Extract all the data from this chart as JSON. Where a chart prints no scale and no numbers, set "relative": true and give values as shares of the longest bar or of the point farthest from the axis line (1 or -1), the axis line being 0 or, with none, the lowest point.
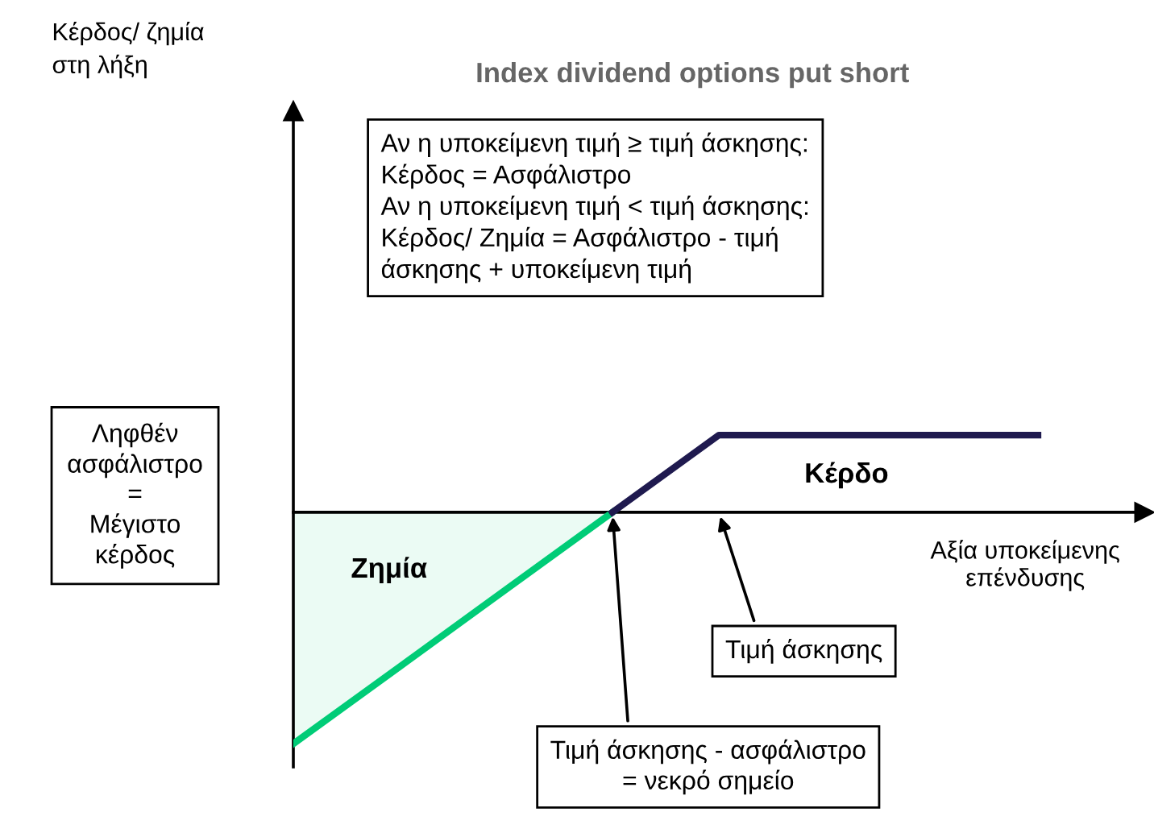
{
  "chart_data": {
    "type": "line",
    "title": "Index dividend options put short",
    "xlabel": "Αξία υποκείμενης\nεπένδυσης",
    "relative": true,
    "categories": [
      null,
      null,
      null,
      null,
      null,
      null,
      null,
      null
    ],
    "series": [
      {
        "type": "area",
        "color": "#00cc77",
        "values": [
          -1,
          -0.667,
          -0.333,
          0,
          null,
          null,
          null,
          null
        ]
      },
      {
        "color": "#1f1a4f",
        "values": [
          null,
          null,
          null,
          0,
          0.333,
          0.333,
          0.333,
          0.333
        ]
      }
    ],
    "annotations": [
      "Κέρδος/ ζημία\nστη λήξη",
      "Αν η υποκείμενη τιμή ≥ τιμή άσκησης:\nΚέρδος = Ασφάλιστρο\nΑν η υποκείμενη τιμή < τιμή άσκησης:\nΚέρδος/ Ζημία = Ασφάλιστρο - τιμή\nάσκησης + υποκείμενη τιμή",
      "Ληφθέν\nασφάλιστρο\n=\nΜέγιστο\nκέρδος",
      "Ζημία",
      "Κέρδο",
      "Τιμή άσκησης",
      "Τιμή άσκησης - ασφάλιστρο\n= νεκρό σημείο"
    ]
  }
}
